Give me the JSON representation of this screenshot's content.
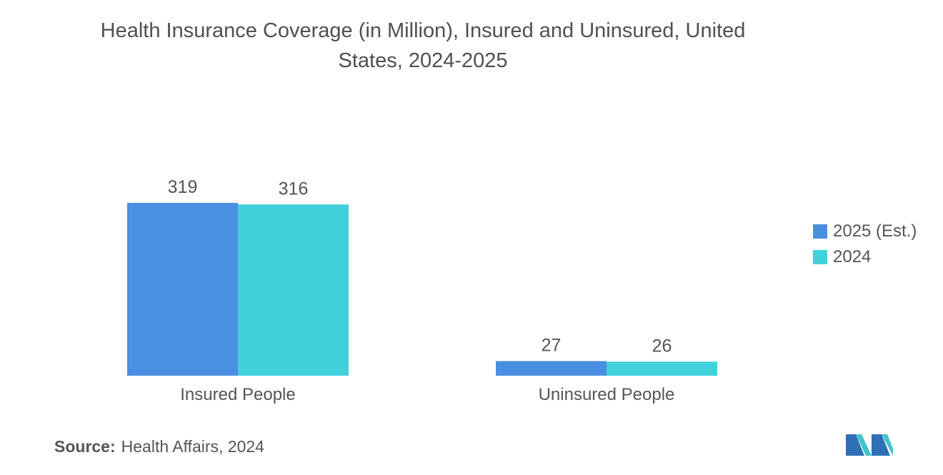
{
  "chart_data": {
    "type": "bar",
    "title": "Health Insurance Coverage (in Million), Insured and Uninsured, United States, 2024-2025",
    "categories": [
      "Insured People",
      "Uninsured People"
    ],
    "series": [
      {
        "name": "2025 (Est.)",
        "values": [
          319,
          27
        ],
        "color": "#4a90e2"
      },
      {
        "name": "2024",
        "values": [
          316,
          26
        ],
        "color": "#41d1da"
      }
    ],
    "xlabel": "",
    "ylabel": "",
    "ylim": [
      0,
      319
    ],
    "grid": false,
    "legend_position": "right"
  },
  "source": {
    "label": "Source:",
    "text": "Health Affairs, 2024"
  }
}
